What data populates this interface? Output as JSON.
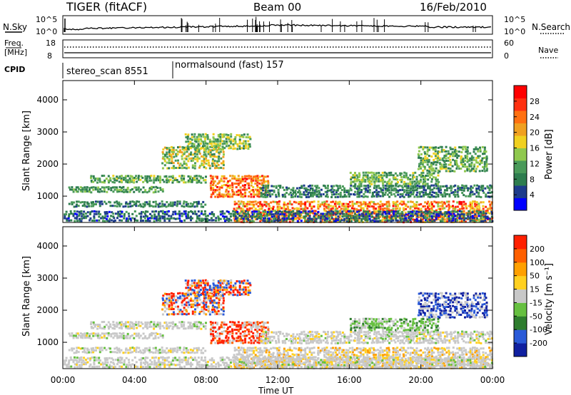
{
  "header": {
    "title": "TIGER (fitACF)",
    "beam": "Beam 00",
    "date": "16/Feb/2010"
  },
  "top_panels": {
    "nsky_label": "N.Sky",
    "nsky_ticks": [
      "10^5",
      "10^0"
    ],
    "nsearch_ticks": [
      "10^5",
      "10^0"
    ],
    "nsearch_label": "N.Search",
    "freq_label_1": "Freq.",
    "freq_label_2": "[MHz]",
    "freq_ticks": [
      "18",
      "8"
    ],
    "nave_ticks": [
      "60",
      "0"
    ],
    "nave_label": "Nave",
    "cpid_label": "CPID",
    "cpid_1": "stereo_scan 8551",
    "cpid_2": "normalsound (fast) 157"
  },
  "colors": {
    "power": [
      "#0000ff",
      "#1e3c8c",
      "#2e7d4f",
      "#4a9a5a",
      "#8fc84e",
      "#f0d020",
      "#f0a020",
      "#ff7010",
      "#ff3010",
      "#ff0000"
    ],
    "velocity": [
      "#1020a0",
      "#2a5ad8",
      "#2e7d2e",
      "#66c040",
      "#c8c8c8",
      "#ffd020",
      "#ffa000",
      "#ff6000",
      "#ff2000"
    ]
  },
  "chart_data": [
    {
      "type": "heatmap",
      "title": "Power",
      "ylabel": "Slant Range [km]",
      "ylim": [
        180,
        4600
      ],
      "y_ticks": [
        "1000",
        "2000",
        "3000",
        "4000"
      ],
      "x_ticks": [
        "00:00",
        "04:00",
        "08:00",
        "12:00",
        "16:00",
        "20:00",
        "00:00"
      ],
      "colorbar_label": "Power [dB]",
      "colorbar_ticks": [
        "28",
        "24",
        "20",
        "16",
        "12",
        "8",
        "4"
      ]
    },
    {
      "type": "heatmap",
      "title": "Velocity",
      "ylabel": "Slant Range [km]",
      "ylim": [
        180,
        4600
      ],
      "y_ticks": [
        "1000",
        "2000",
        "3000",
        "4000"
      ],
      "x_ticks": [
        "00:00",
        "04:00",
        "08:00",
        "12:00",
        "16:00",
        "20:00",
        "00:00"
      ],
      "xlabel": "Time UT",
      "colorbar_label": "Velocity [m s⁻¹]",
      "colorbar_ticks": [
        "200",
        "100",
        "50",
        "15",
        "-15",
        "-50",
        "-100",
        "-200"
      ]
    }
  ]
}
